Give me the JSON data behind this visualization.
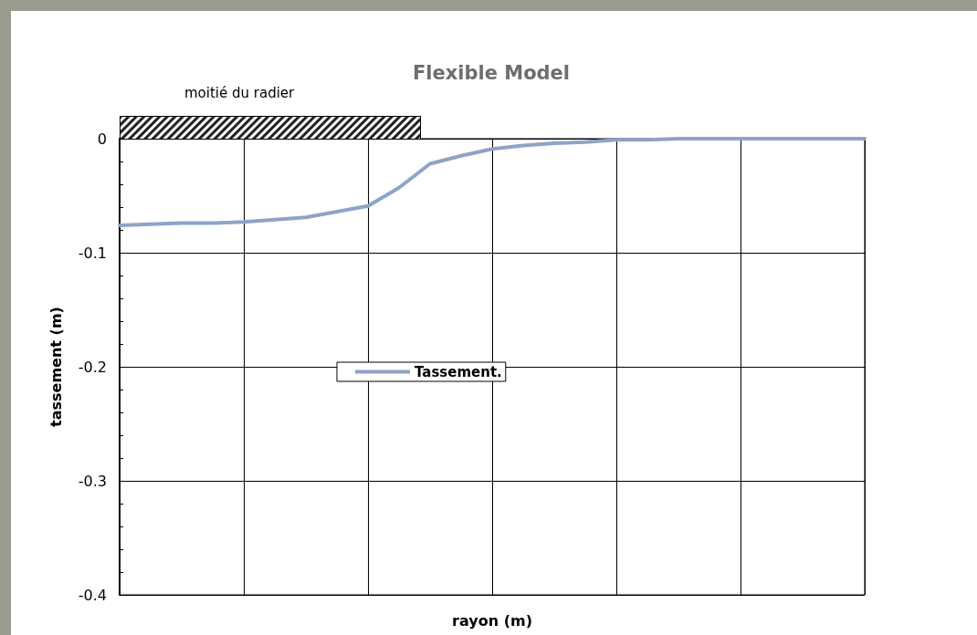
{
  "chart_data": {
    "type": "line",
    "title": "Flexible Model",
    "xlabel": "rayon (m)",
    "ylabel": "tassement (m)",
    "annotations": [
      "moitié du radier"
    ],
    "categories": [
      null,
      null,
      null,
      null,
      null,
      null,
      null,
      null,
      null,
      null,
      null,
      null,
      null,
      null,
      null,
      null,
      null,
      null,
      null,
      null,
      null,
      null,
      null,
      null,
      null
    ],
    "series": [
      {
        "name": "Tassement.",
        "color": "#8fa3c8",
        "values": [
          -0.076,
          -0.075,
          -0.074,
          -0.074,
          -0.073,
          -0.071,
          -0.069,
          -0.064,
          -0.059,
          -0.043,
          -0.022,
          -0.015,
          -0.009,
          -0.006,
          -0.004,
          -0.003,
          -0.001,
          -0.001,
          0,
          0,
          0,
          0,
          0,
          0,
          0
        ]
      }
    ],
    "ylim": [
      -0.4,
      0
    ],
    "yticks": [
      -0.4,
      -0.3,
      -0.2,
      -0.1,
      0
    ],
    "grid": true,
    "legend": "center",
    "marker": "none",
    "line_style": "solid"
  }
}
